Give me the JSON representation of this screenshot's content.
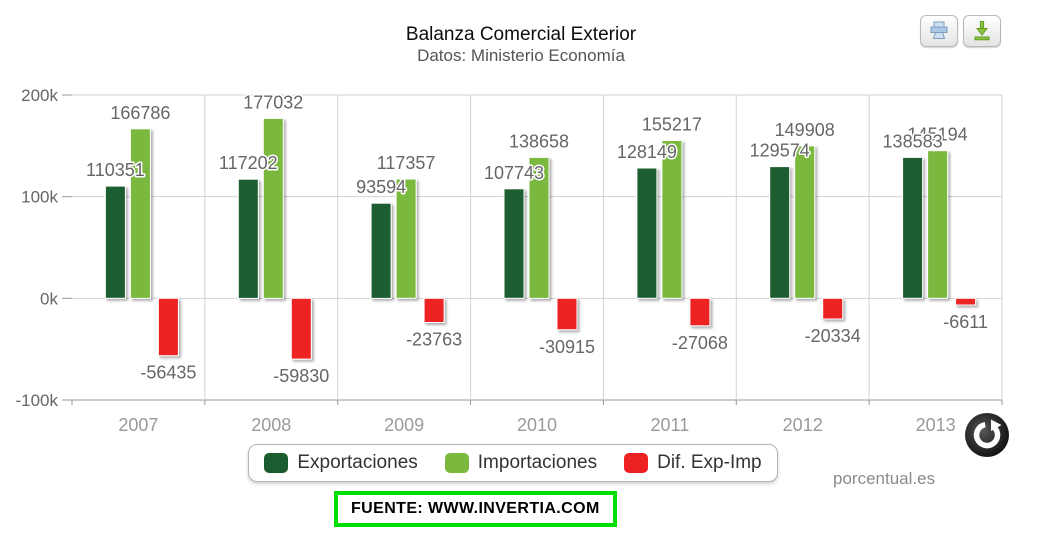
{
  "header": {
    "title": "Balanza Comercial Exterior",
    "subtitle": "Datos: Ministerio Economía"
  },
  "toolbar": {
    "buttons": [
      {
        "name": "print",
        "icon": "print-icon"
      },
      {
        "name": "download",
        "icon": "download-icon"
      }
    ]
  },
  "controls": {
    "refresh_icon": "refresh-icon"
  },
  "chart_data": {
    "type": "bar",
    "title": "Balanza Comercial Exterior",
    "subtitle": "Datos: Ministerio Economía",
    "categories": [
      "2007",
      "2008",
      "2009",
      "2010",
      "2011",
      "2012",
      "2013"
    ],
    "series": [
      {
        "name": "Exportaciones",
        "color": "#1c5d30",
        "values": [
          110351,
          117202,
          93594,
          107743,
          128149,
          129574,
          138583
        ]
      },
      {
        "name": "Importaciones",
        "color": "#7ab93e",
        "values": [
          166786,
          177032,
          117357,
          138658,
          155217,
          149908,
          145194
        ]
      },
      {
        "name": "Dif. Exp-Imp",
        "color": "#ed2024",
        "values": [
          -56435,
          -59830,
          -23763,
          -30915,
          -27068,
          -20334,
          -6611
        ]
      }
    ],
    "y_axis": {
      "min": -100000,
      "max": 200000,
      "ticks": [
        {
          "label": "200k",
          "value": 200000
        },
        {
          "label": "100k",
          "value": 100000
        },
        {
          "label": "0k",
          "value": 0
        },
        {
          "label": "-100k",
          "value": -100000
        }
      ]
    },
    "grid": true,
    "data_labels": true,
    "legend_position": "bottom"
  },
  "footer": {
    "source": "FUENTE: WWW.INVERTIA.COM",
    "credit": "porcentual.es"
  },
  "colors": {
    "grid": "#d2d2d2",
    "axis": "#999999",
    "bar_border": "#ffffff",
    "data_label": "#666666",
    "y_label": "#666666",
    "x_label": "#9a9a9a",
    "source_border": "#00dd00",
    "legend_text": "#333333"
  }
}
